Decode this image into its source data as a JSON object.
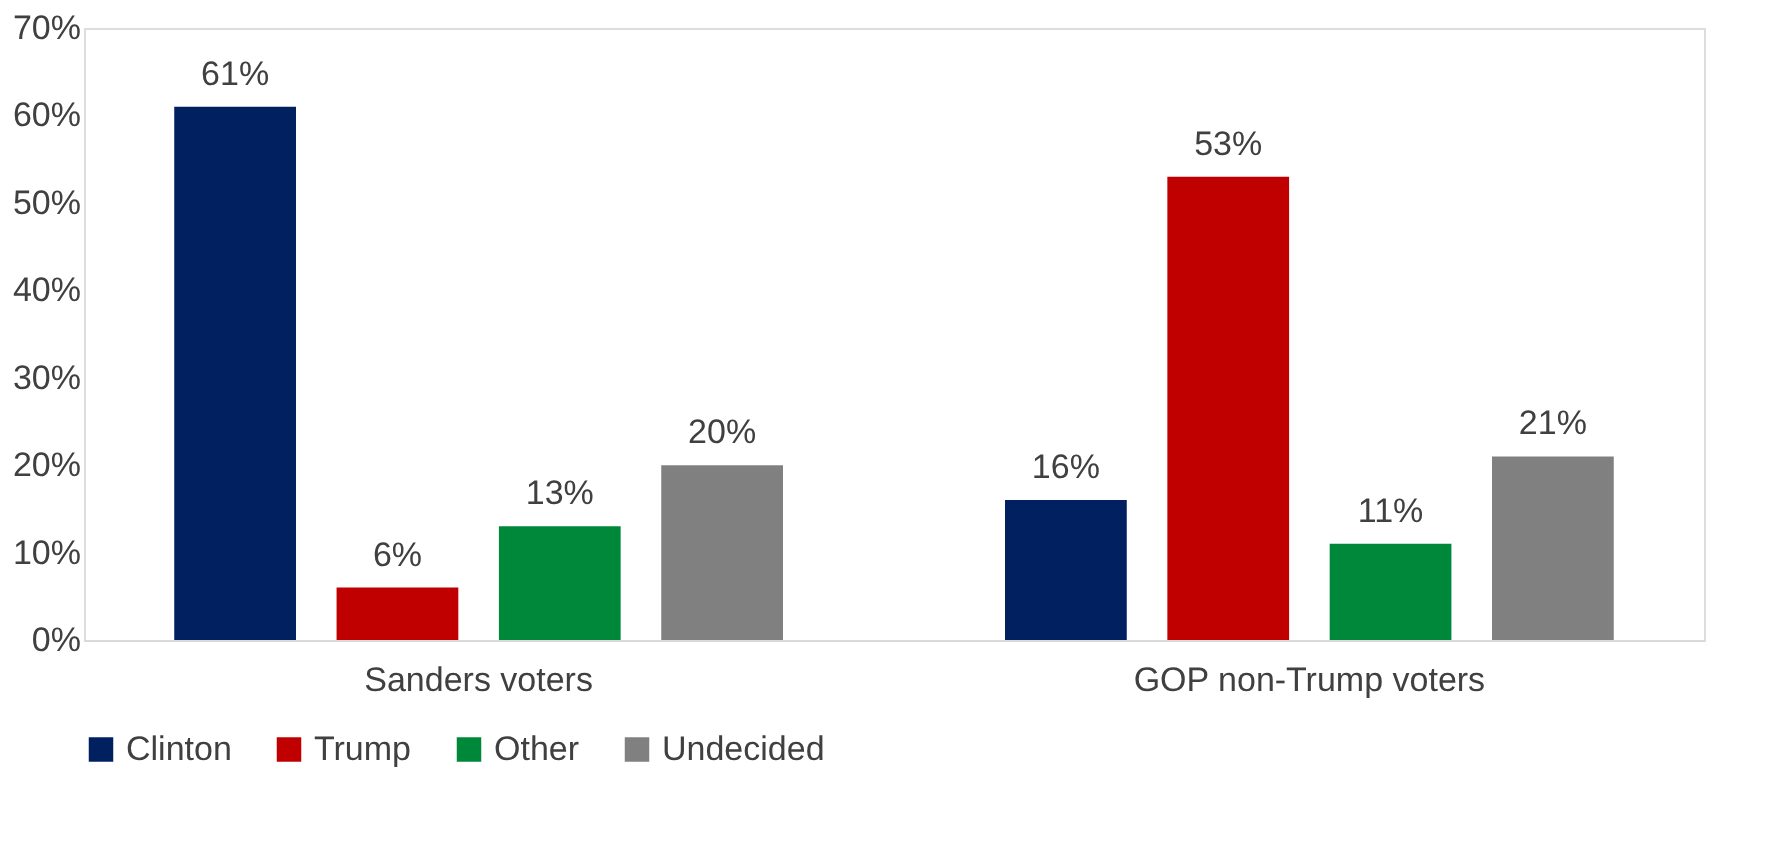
{
  "chart_data": {
    "type": "bar",
    "categories": [
      "Sanders voters",
      "GOP non-Trump voters"
    ],
    "series": [
      {
        "name": "Clinton",
        "color": "#002060",
        "values": [
          61,
          16
        ],
        "value_labels": [
          "61%",
          "16%"
        ]
      },
      {
        "name": "Trump",
        "color": "#c00000",
        "values": [
          6,
          53
        ],
        "value_labels": [
          "6%",
          "53%"
        ]
      },
      {
        "name": "Other",
        "color": "#00883a",
        "values": [
          13,
          11
        ],
        "value_labels": [
          "13%",
          "11%"
        ]
      },
      {
        "name": "Undecided",
        "color": "#808080",
        "values": [
          20,
          21
        ],
        "value_labels": [
          "20%",
          "21%"
        ]
      }
    ],
    "ylim": [
      0,
      70
    ],
    "yticks": [
      {
        "value": 0,
        "label": "0%"
      },
      {
        "value": 10,
        "label": "10%"
      },
      {
        "value": 20,
        "label": "20%"
      },
      {
        "value": 30,
        "label": "30%"
      },
      {
        "value": 40,
        "label": "40%"
      },
      {
        "value": 50,
        "label": "50%"
      },
      {
        "value": 60,
        "label": "60%"
      },
      {
        "value": 70,
        "label": "70%"
      }
    ],
    "grid": false,
    "legend": "bottom"
  }
}
